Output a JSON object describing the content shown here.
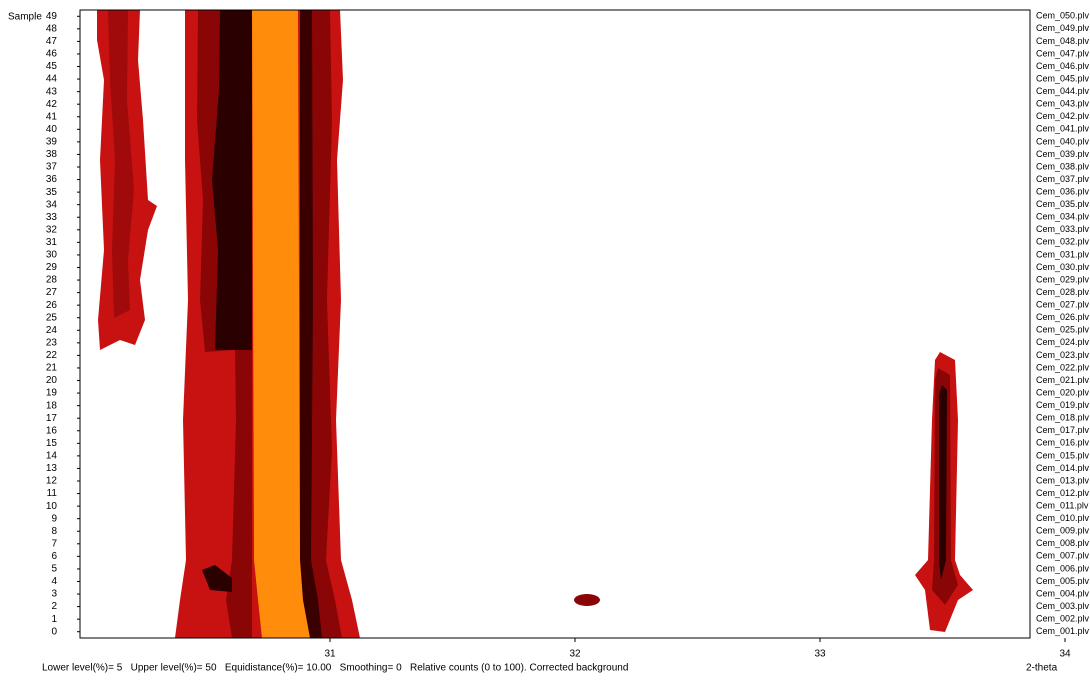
{
  "chart_data": {
    "type": "contour",
    "y_label": "Sample",
    "x_label": "2-theta",
    "footer": "Lower level(%)= 5   Upper level(%)= 50   Equidistance(%)= 10.00   Smoothing= 0   Relative counts (0 to 100). Corrected background",
    "xlim": [
      30,
      34
    ],
    "xticks": [
      31,
      32,
      33,
      34
    ],
    "ylim": [
      -0.5,
      49.5
    ],
    "yticks": [
      0,
      1,
      2,
      3,
      4,
      5,
      6,
      7,
      8,
      9,
      10,
      11,
      12,
      13,
      14,
      15,
      16,
      17,
      18,
      19,
      20,
      21,
      22,
      23,
      24,
      25,
      26,
      27,
      28,
      29,
      30,
      31,
      32,
      33,
      34,
      35,
      36,
      37,
      38,
      39,
      40,
      41,
      42,
      43,
      44,
      45,
      46,
      47,
      48,
      49
    ],
    "files": [
      "Cem_001.plv",
      "Cem_002.plv",
      "Cem_003.plv",
      "Cem_004.plv",
      "Cem_005.plv",
      "Cem_006.plv",
      "Cem_007.plv",
      "Cem_008.plv",
      "Cem_009.plv",
      "Cem_010.plv",
      "Cem_011.plv",
      "Cem_012.plv",
      "Cem_013.plv",
      "Cem_014.plv",
      "Cem_015.plv",
      "Cem_016.plv",
      "Cem_017.plv",
      "Cem_018.plv",
      "Cem_019.plv",
      "Cem_020.plv",
      "Cem_021.plv",
      "Cem_022.plv",
      "Cem_023.plv",
      "Cem_024.plv",
      "Cem_025.plv",
      "Cem_026.plv",
      "Cem_027.plv",
      "Cem_028.plv",
      "Cem_029.plv",
      "Cem_030.plv",
      "Cem_031.plv",
      "Cem_032.plv",
      "Cem_033.plv",
      "Cem_034.plv",
      "Cem_035.plv",
      "Cem_036.plv",
      "Cem_037.plv",
      "Cem_038.plv",
      "Cem_039.plv",
      "Cem_040.plv",
      "Cem_041.plv",
      "Cem_042.plv",
      "Cem_043.plv",
      "Cem_044.plv",
      "Cem_045.plv",
      "Cem_046.plv",
      "Cem_047.plv",
      "Cem_048.plv",
      "Cem_049.plv",
      "Cem_050.plv"
    ]
  }
}
